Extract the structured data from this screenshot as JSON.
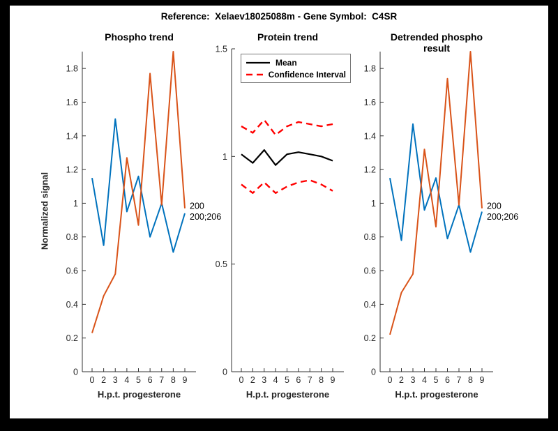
{
  "figure": {
    "title": "Reference:  Xelaev18025088m - Gene Symbol:  C4SR",
    "background": "#ffffff",
    "frame_color": "#000000"
  },
  "colors": {
    "blue": "#0072BD",
    "orange": "#D95319",
    "red": "#FF0000",
    "black": "#000000",
    "axis": "#333333",
    "tick_text": "#262626"
  },
  "chart_data": [
    {
      "type": "line",
      "title": "Phospho trend",
      "xlabel": "H.p.t. progesterone",
      "ylabel": "Normalized signal",
      "x_tick_labels": [
        "0",
        "2",
        "3",
        "4",
        "5",
        "6",
        "7",
        "8",
        "9"
      ],
      "y_ticks": [
        0,
        0.2,
        0.4,
        0.6,
        0.8,
        1,
        1.2,
        1.4,
        1.6,
        1.8
      ],
      "y_tick_labels": [
        "0",
        "0.2",
        "0.4",
        "0.6",
        "0.8",
        "1",
        "1.2",
        "1.4",
        "1.6",
        "1.8"
      ],
      "ylim": [
        0,
        1.9
      ],
      "grid": false,
      "series": [
        {
          "name": "200;206",
          "color_key": "blue",
          "dash": false,
          "values": [
            1.15,
            0.75,
            1.5,
            0.95,
            1.16,
            0.8,
            1.0,
            0.71,
            0.94
          ]
        },
        {
          "name": "200",
          "color_key": "orange",
          "dash": false,
          "values": [
            0.23,
            0.45,
            0.58,
            1.27,
            0.87,
            1.77,
            0.99,
            1.9,
            0.97
          ]
        }
      ],
      "end_labels": [
        "200",
        "200;206"
      ]
    },
    {
      "type": "line",
      "title": "Protein trend",
      "xlabel": "H.p.t. progesterone",
      "ylabel": "",
      "x_tick_labels": [
        "0",
        "2",
        "3",
        "4",
        "5",
        "6",
        "7",
        "8",
        "9"
      ],
      "y_ticks": [
        0,
        0.5,
        1,
        1.5
      ],
      "y_tick_labels": [
        "0",
        "0.5",
        "1",
        "1.5"
      ],
      "ylim": [
        0,
        1.5
      ],
      "grid": false,
      "legend": {
        "position": "top-left",
        "entries": [
          {
            "label": "Mean",
            "color_key": "black",
            "dash": false
          },
          {
            "label": "Confidence Interval",
            "color_key": "red",
            "dash": true
          }
        ]
      },
      "series": [
        {
          "name": "Mean",
          "color_key": "black",
          "dash": false,
          "values": [
            1.01,
            0.97,
            1.03,
            0.96,
            1.01,
            1.02,
            1.01,
            1.0,
            0.98
          ]
        },
        {
          "name": "Confidence Interval upper",
          "color_key": "red",
          "dash": true,
          "values": [
            1.14,
            1.11,
            1.17,
            1.1,
            1.14,
            1.16,
            1.15,
            1.14,
            1.15
          ]
        },
        {
          "name": "Confidence Interval lower",
          "color_key": "red",
          "dash": true,
          "values": [
            0.87,
            0.83,
            0.88,
            0.83,
            0.86,
            0.88,
            0.89,
            0.87,
            0.84
          ]
        }
      ]
    },
    {
      "type": "line",
      "title": "Detrended phospho result",
      "xlabel": "H.p.t. progesterone",
      "ylabel": "",
      "x_tick_labels": [
        "0",
        "2",
        "3",
        "4",
        "5",
        "6",
        "7",
        "8",
        "9"
      ],
      "y_ticks": [
        0,
        0.2,
        0.4,
        0.6,
        0.8,
        1,
        1.2,
        1.4,
        1.6,
        1.8
      ],
      "y_tick_labels": [
        "0",
        "0.2",
        "0.4",
        "0.6",
        "0.8",
        "1",
        "1.2",
        "1.4",
        "1.6",
        "1.8"
      ],
      "ylim": [
        0,
        1.9
      ],
      "grid": false,
      "series": [
        {
          "name": "200;206",
          "color_key": "blue",
          "dash": false,
          "values": [
            1.15,
            0.78,
            1.47,
            0.96,
            1.15,
            0.79,
            0.99,
            0.71,
            0.95
          ]
        },
        {
          "name": "200",
          "color_key": "orange",
          "dash": false,
          "values": [
            0.22,
            0.47,
            0.58,
            1.32,
            0.86,
            1.74,
            0.99,
            1.9,
            0.97
          ]
        }
      ],
      "end_labels": [
        "200",
        "200;206"
      ]
    }
  ]
}
